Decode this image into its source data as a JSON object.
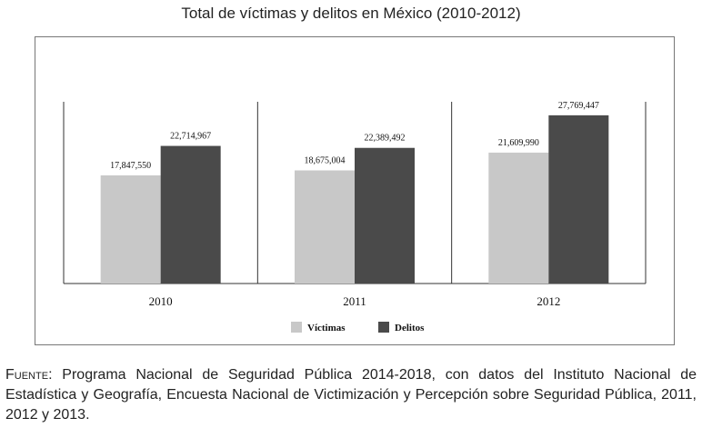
{
  "chart_data": {
    "type": "bar",
    "title": "Total de víctimas y delitos en México (2010-2012)",
    "categories": [
      "2010",
      "2011",
      "2012"
    ],
    "series": [
      {
        "name": "Víctimas",
        "values": [
          17847550,
          18675004,
          21609990
        ],
        "labels": [
          "17,847,550",
          "18,675,004",
          "21,609,990"
        ],
        "color": "#c8c8c8"
      },
      {
        "name": "Delitos",
        "values": [
          22714967,
          22389492,
          27769447
        ],
        "labels": [
          "22,714,967",
          "22,389,492",
          "27,769,447"
        ],
        "color": "#4a4a4a"
      }
    ],
    "ylim": [
      0,
      30000000
    ],
    "grid": false,
    "legend_position": "bottom"
  },
  "source": {
    "prefix": "Fuente",
    "text": ": Programa Nacional de Seguridad Pública 2014-2018, con datos del Instituto Nacional de Estadística y Geografía, Encuesta Nacional de Victimización y Percepción sobre Seguridad Pública, 2011, 2012 y 2013."
  }
}
